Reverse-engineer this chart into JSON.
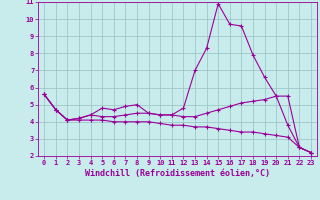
{
  "xlabel": "Windchill (Refroidissement éolien,°C)",
  "background_color": "#c8ecec",
  "grid_color": "#a0c8c8",
  "line_color": "#990099",
  "x": [
    0,
    1,
    2,
    3,
    4,
    5,
    6,
    7,
    8,
    9,
    10,
    11,
    12,
    13,
    14,
    15,
    16,
    17,
    18,
    19,
    20,
    21,
    22,
    23
  ],
  "line1": [
    5.6,
    4.7,
    4.1,
    4.2,
    4.4,
    4.8,
    4.7,
    4.9,
    5.0,
    4.5,
    4.4,
    4.4,
    4.8,
    7.0,
    8.3,
    10.9,
    9.7,
    9.6,
    7.9,
    6.6,
    5.5,
    3.8,
    2.5,
    2.2
  ],
  "line2": [
    5.6,
    4.7,
    4.1,
    4.2,
    4.4,
    4.3,
    4.3,
    4.4,
    4.5,
    4.5,
    4.4,
    4.4,
    4.3,
    4.3,
    4.5,
    4.7,
    4.9,
    5.1,
    5.2,
    5.3,
    5.5,
    5.5,
    2.5,
    2.2
  ],
  "line3": [
    5.6,
    4.7,
    4.1,
    4.1,
    4.1,
    4.1,
    4.0,
    4.0,
    4.0,
    4.0,
    3.9,
    3.8,
    3.8,
    3.7,
    3.7,
    3.6,
    3.5,
    3.4,
    3.4,
    3.3,
    3.2,
    3.1,
    2.5,
    2.2
  ],
  "ylim": [
    2,
    11
  ],
  "xlim": [
    -0.5,
    23.5
  ],
  "yticks": [
    2,
    3,
    4,
    5,
    6,
    7,
    8,
    9,
    10,
    11
  ],
  "xticks": [
    0,
    1,
    2,
    3,
    4,
    5,
    6,
    7,
    8,
    9,
    10,
    11,
    12,
    13,
    14,
    15,
    16,
    17,
    18,
    19,
    20,
    21,
    22,
    23
  ],
  "tick_fontsize": 5,
  "xlabel_fontsize": 6,
  "line_width": 0.8,
  "marker_size": 2.5
}
